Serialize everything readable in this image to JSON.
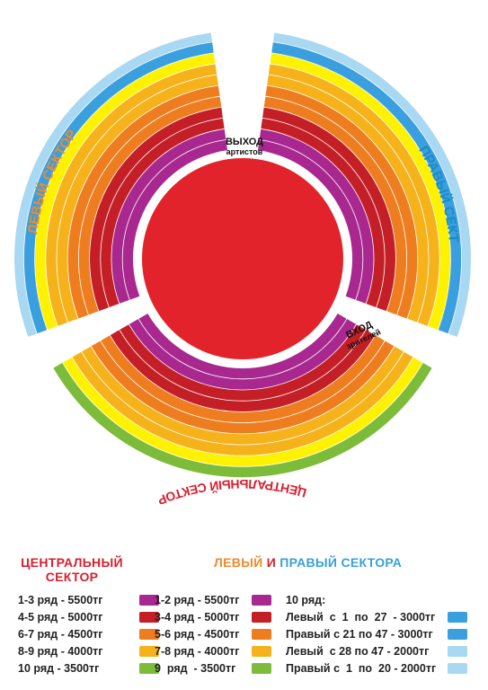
{
  "sectors": {
    "left": "ЛЕВЫЙ СЕКТОР",
    "right": "ПРАВЫЙ СЕКТОР",
    "central": "ЦЕНТРАЛЬНЫЙ СЕКТОР"
  },
  "exits": {
    "artists_line1": "ВЫХОД",
    "artists_line2": "артистов",
    "spectators_line1": "ВХОД",
    "spectators_line2": "зрителей"
  },
  "colors": {
    "arena": "#e3232b",
    "row_colors": [
      "#a8288f",
      "#a8288f",
      "#c41f26",
      "#c41f26",
      "#ee7d1f",
      "#ee7d1f",
      "#f6b21a",
      "#f6b21a",
      "#fff200",
      "#7dbb3a"
    ],
    "side_row10_colors": [
      "#3a9fde",
      "#a9d8f3"
    ],
    "central_title": "#d7202f",
    "side_title_orange": "#f08a2b",
    "side_title_blue": "#3aa0d8"
  },
  "central_legend": {
    "title_line1": "ЦЕНТРАЛЬНЫЙ",
    "title_line2": "СЕКТОР",
    "rows": [
      {
        "label": "1-3 ряд - 5500тг",
        "color": "#a8288f"
      },
      {
        "label": "4-5 ряд - 5000тг",
        "color": "#c41f26"
      },
      {
        "label": "6-7 ряд - 4500тг",
        "color": "#ee7d1f"
      },
      {
        "label": "8-9 ряд - 4000тг",
        "color": "#f6b21a"
      },
      {
        "label": "10 ряд - 3500тг",
        "color": "#7dbb3a"
      }
    ]
  },
  "side_legend": {
    "title_left": "ЛЕВЫЙ",
    "title_and": " И ",
    "title_right": "ПРАВЫЙ",
    "title_tail": " СЕКТОРА",
    "rows": [
      {
        "label": "1-2 ряд - 5500тг",
        "color": "#a8288f"
      },
      {
        "label": "3-4 ряд - 5000тг",
        "color": "#c41f26"
      },
      {
        "label": "5-6 ряд - 4500тг",
        "color": "#ee7d1f"
      },
      {
        "label": "7-8 ряд - 4000тг",
        "color": "#f6b21a"
      },
      {
        "label": "9  ряд  - 3500тг",
        "color": "#7dbb3a"
      }
    ],
    "row10_title": "10 ряд:",
    "row10": [
      {
        "label": "Левый  с  1  по  27  - 3000тг",
        "color": "#3a9fde"
      },
      {
        "label": "Правый с 21 по 47 - 3000тг",
        "color": "#3a9fde"
      },
      {
        "label": "Левый  с 28 по 47 - 2000тг",
        "color": "#a9d8f3"
      },
      {
        "label": "Правый с  1  по  20 - 2000тг",
        "color": "#a9d8f3"
      }
    ]
  }
}
